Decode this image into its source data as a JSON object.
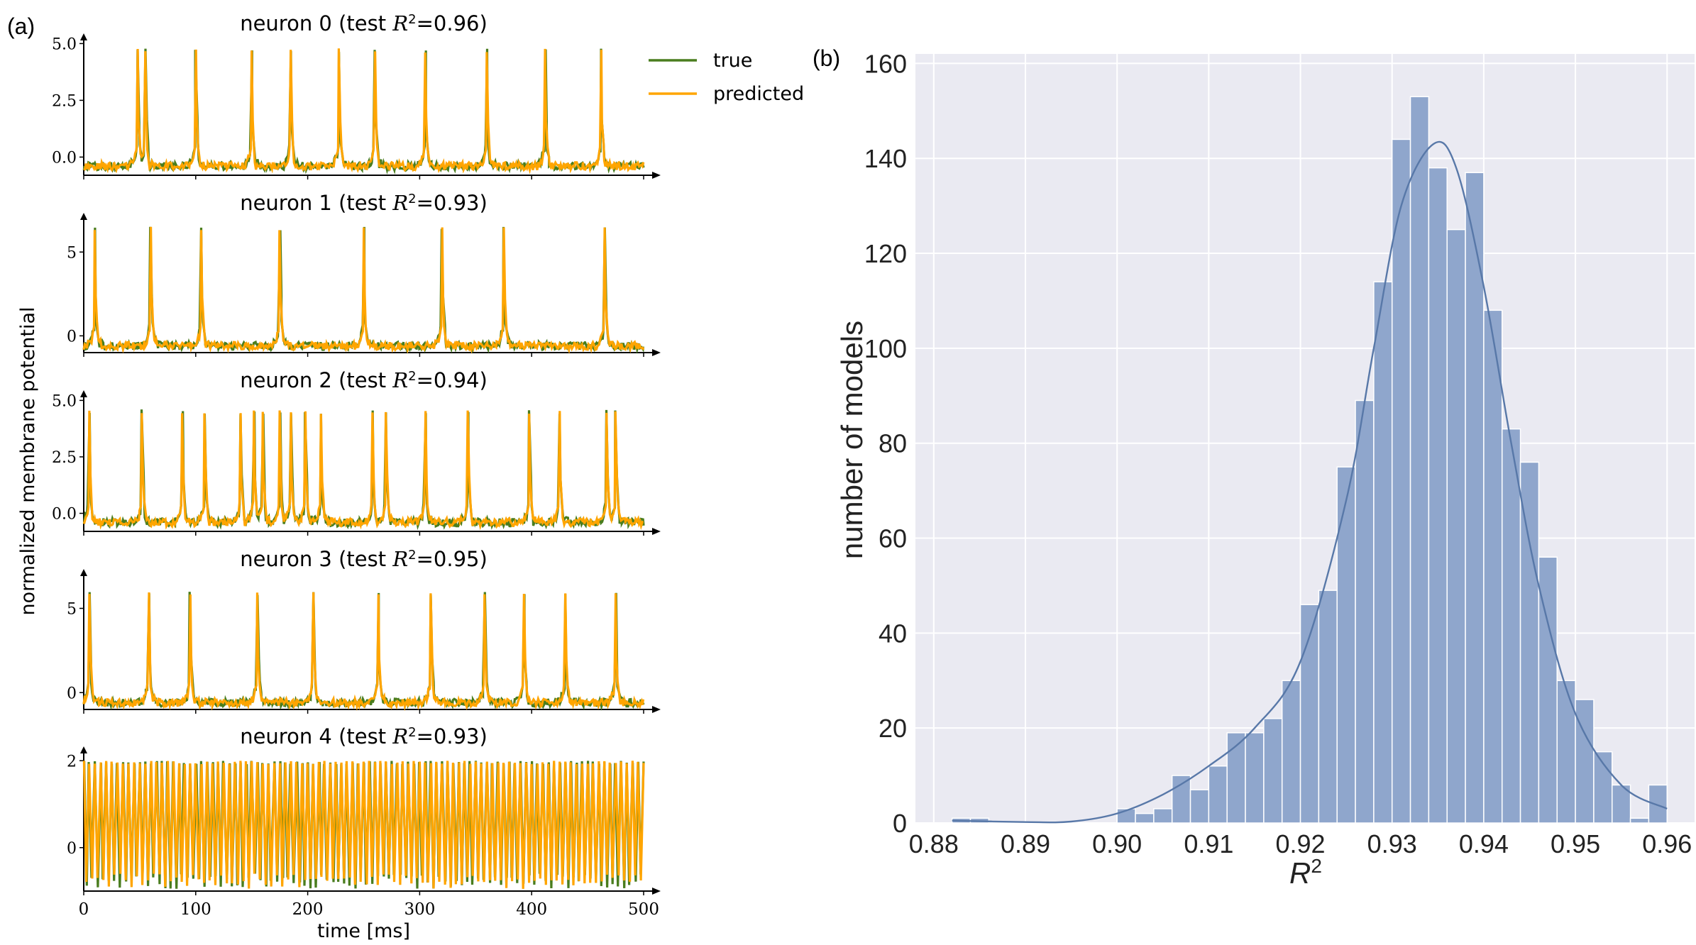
{
  "panel_a": {
    "label": "(a)",
    "ylabel": "normalized membrane potential",
    "xlabel": "time [ms]",
    "legend": {
      "placement": "top-right",
      "entries": [
        {
          "name": "true",
          "color": "#4a7d1e"
        },
        {
          "name": "predicted",
          "color": "#ffa500"
        }
      ]
    },
    "titles": [
      {
        "name": "neuron 0",
        "prefix": "(test ",
        "sym": "R",
        "sup": "2",
        "rest": "=0.96)"
      },
      {
        "name": "neuron 1",
        "prefix": "(test ",
        "sym": "R",
        "sup": "2",
        "rest": "=0.93)"
      },
      {
        "name": "neuron 2",
        "prefix": "(test ",
        "sym": "R",
        "sup": "2",
        "rest": "=0.94)"
      },
      {
        "name": "neuron 3",
        "prefix": "(test ",
        "sym": "R",
        "sup": "2",
        "rest": "=0.95)"
      },
      {
        "name": "neuron 4",
        "prefix": "(test ",
        "sym": "R",
        "sup": "2",
        "rest": "=0.93)"
      }
    ],
    "yticks": [
      [
        "0.0",
        "2.5",
        "5.0"
      ],
      [
        "0",
        "5"
      ],
      [
        "0.0",
        "2.5",
        "5.0"
      ],
      [
        "0",
        "5"
      ],
      [
        "0",
        "2"
      ]
    ],
    "xticks": [
      "0",
      "100",
      "200",
      "300",
      "400",
      "500"
    ]
  },
  "panel_b": {
    "label": "(b)",
    "ylabel": "number of models",
    "xlabel": "R",
    "xlabel_sup": "2"
  },
  "chart_data": [
    {
      "type": "line",
      "panel": "a",
      "xlim": [
        0,
        500
      ],
      "x_unit": "ms",
      "series": [
        {
          "name": "true",
          "color": "#4a7d1e"
        },
        {
          "name": "predicted",
          "color": "#ffa500"
        }
      ],
      "subplots": [
        {
          "title": "neuron 0 (test R2=0.96)",
          "ylim": [
            -0.8,
            5.2
          ],
          "baseline": -0.4,
          "peak": 4.8,
          "spike_times": [
            48,
            55,
            100,
            150,
            185,
            228,
            260,
            305,
            360,
            412,
            462
          ]
        },
        {
          "title": "neuron 1 (test R2=0.93)",
          "ylim": [
            -1.0,
            7.0
          ],
          "baseline": -0.6,
          "peak": 6.5,
          "spike_times": [
            10,
            60,
            105,
            175,
            250,
            320,
            375,
            465
          ]
        },
        {
          "title": "neuron 2 (test R2=0.94)",
          "ylim": [
            -0.8,
            5.2
          ],
          "baseline": -0.4,
          "peak": 4.6,
          "spike_times": [
            5,
            52,
            88,
            108,
            140,
            152,
            160,
            175,
            185,
            198,
            212,
            258,
            270,
            305,
            343,
            398,
            425,
            467,
            475
          ]
        },
        {
          "title": "neuron 3 (test R2=0.95)",
          "ylim": [
            -1.0,
            7.0
          ],
          "baseline": -0.6,
          "peak": 6.0,
          "spike_times": [
            5,
            58,
            95,
            155,
            205,
            263,
            310,
            358,
            393,
            430,
            475
          ]
        },
        {
          "title": "neuron 4 (test R2=0.93)",
          "ylim": [
            -1.0,
            2.2
          ],
          "baseline": -0.6,
          "peak": 2.0,
          "spike_period_ms": 5,
          "note": "dense oscillation"
        }
      ]
    },
    {
      "type": "bar",
      "panel": "b",
      "xlabel": "R2",
      "ylabel": "number of models",
      "xlim": [
        0.878,
        0.963
      ],
      "ylim": [
        0,
        162
      ],
      "xticks": [
        0.88,
        0.89,
        0.9,
        0.91,
        0.92,
        0.93,
        0.94,
        0.95,
        0.96
      ],
      "yticks": [
        0,
        20,
        40,
        60,
        80,
        100,
        120,
        140,
        160
      ],
      "bin_width": 0.002,
      "bin_starts": [
        0.882,
        0.884,
        0.9,
        0.902,
        0.904,
        0.906,
        0.908,
        0.91,
        0.912,
        0.914,
        0.916,
        0.918,
        0.92,
        0.922,
        0.924,
        0.926,
        0.928,
        0.93,
        0.932,
        0.934,
        0.936,
        0.938,
        0.94,
        0.942,
        0.944,
        0.946,
        0.948,
        0.95,
        0.952,
        0.954,
        0.956,
        0.958
      ],
      "values": [
        1,
        1,
        3,
        2,
        3,
        10,
        7,
        12,
        19,
        19,
        22,
        30,
        46,
        49,
        75,
        89,
        114,
        144,
        153,
        138,
        125,
        137,
        108,
        83,
        76,
        56,
        30,
        26,
        15,
        8,
        1,
        8
      ],
      "kde": {
        "x": [
          0.882,
          0.89,
          0.895,
          0.9,
          0.905,
          0.91,
          0.915,
          0.92,
          0.925,
          0.928,
          0.931,
          0.9345,
          0.937,
          0.94,
          0.943,
          0.946,
          0.95,
          0.955,
          0.96
        ],
        "y": [
          0.5,
          0.2,
          0.3,
          2,
          6,
          12,
          20,
          34,
          68,
          100,
          130,
          143,
          138,
          113,
          80,
          50,
          23,
          8,
          3
        ]
      },
      "bar_color": "#8fa6cc",
      "background": "#eaeaf2"
    }
  ]
}
